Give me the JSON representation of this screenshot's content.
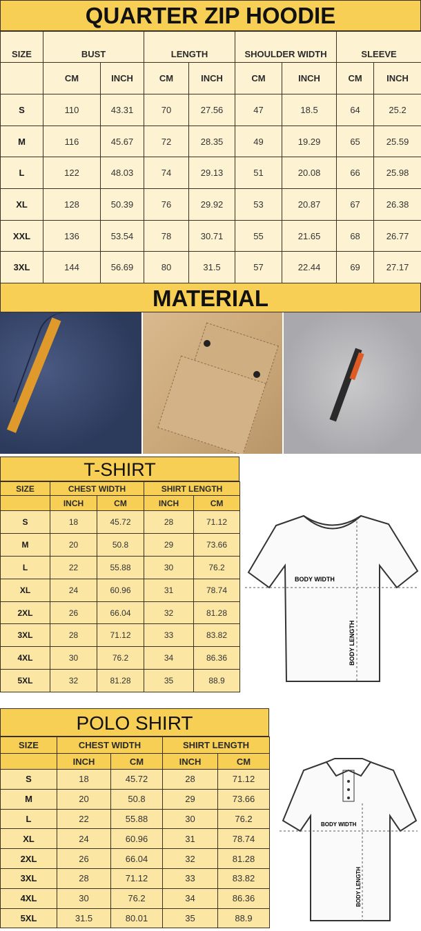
{
  "hoodie": {
    "title": "QUARTER ZIP HOODIE",
    "size_label": "SIZE",
    "groups": [
      "BUST",
      "LENGTH",
      "SHOULDER WIDTH",
      "SLEEVE"
    ],
    "units": [
      "CM",
      "INCH",
      "CM",
      "INCH",
      "CM",
      "INCH",
      "CM",
      "INCH"
    ],
    "rows": [
      [
        "S",
        "110",
        "43.31",
        "70",
        "27.56",
        "47",
        "18.5",
        "64",
        "25.2"
      ],
      [
        "M",
        "116",
        "45.67",
        "72",
        "28.35",
        "49",
        "19.29",
        "65",
        "25.59"
      ],
      [
        "L",
        "122",
        "48.03",
        "74",
        "29.13",
        "51",
        "20.08",
        "66",
        "25.98"
      ],
      [
        "XL",
        "128",
        "50.39",
        "76",
        "29.92",
        "53",
        "20.87",
        "67",
        "26.38"
      ],
      [
        "XXL",
        "136",
        "53.54",
        "78",
        "30.71",
        "55",
        "21.65",
        "68",
        "26.77"
      ],
      [
        "3XL",
        "144",
        "56.69",
        "80",
        "31.5",
        "57",
        "22.44",
        "69",
        "27.17"
      ]
    ]
  },
  "material": {
    "title": "MATERIAL",
    "photos": [
      "navy-fleece-with-orange-zip-pull",
      "khaki-flap-pocket",
      "grey-fleece-with-zip-pocket"
    ]
  },
  "tshirt": {
    "title": "T-SHIRT",
    "size_label": "SIZE",
    "groups": [
      "CHEST WIDTH",
      "SHIRT LENGTH"
    ],
    "units": [
      "INCH",
      "CM",
      "INCH",
      "CM"
    ],
    "rows": [
      [
        "S",
        "18",
        "45.72",
        "28",
        "71.12"
      ],
      [
        "M",
        "20",
        "50.8",
        "29",
        "73.66"
      ],
      [
        "L",
        "22",
        "55.88",
        "30",
        "76.2"
      ],
      [
        "XL",
        "24",
        "60.96",
        "31",
        "78.74"
      ],
      [
        "2XL",
        "26",
        "66.04",
        "32",
        "81.28"
      ],
      [
        "3XL",
        "28",
        "71.12",
        "33",
        "83.82"
      ],
      [
        "4XL",
        "30",
        "76.2",
        "34",
        "86.36"
      ],
      [
        "5XL",
        "32",
        "81.28",
        "35",
        "88.9"
      ]
    ],
    "diagram": {
      "width_label": "BODY WIDTH",
      "length_label": "BODY LENGTH"
    }
  },
  "polo": {
    "title": "POLO SHIRT",
    "size_label": "SIZE",
    "groups": [
      "CHEST WIDTH",
      "SHIRT LENGTH"
    ],
    "units": [
      "INCH",
      "CM",
      "INCH",
      "CM"
    ],
    "rows": [
      [
        "S",
        "18",
        "45.72",
        "28",
        "71.12"
      ],
      [
        "M",
        "20",
        "50.8",
        "29",
        "73.66"
      ],
      [
        "L",
        "22",
        "55.88",
        "30",
        "76.2"
      ],
      [
        "XL",
        "24",
        "60.96",
        "31",
        "78.74"
      ],
      [
        "2XL",
        "26",
        "66.04",
        "32",
        "81.28"
      ],
      [
        "3XL",
        "28",
        "71.12",
        "33",
        "83.82"
      ],
      [
        "4XL",
        "30",
        "76.2",
        "34",
        "86.36"
      ],
      [
        "5XL",
        "31.5",
        "80.01",
        "35",
        "88.9"
      ]
    ],
    "diagram": {
      "width_label": "BODY WIDTH",
      "length_label": "BODY LENGTH"
    }
  },
  "colors": {
    "header": "#f7cf55",
    "hoodie_cell": "#fdf2d2",
    "shirt_cell": "#fbe6a4"
  }
}
